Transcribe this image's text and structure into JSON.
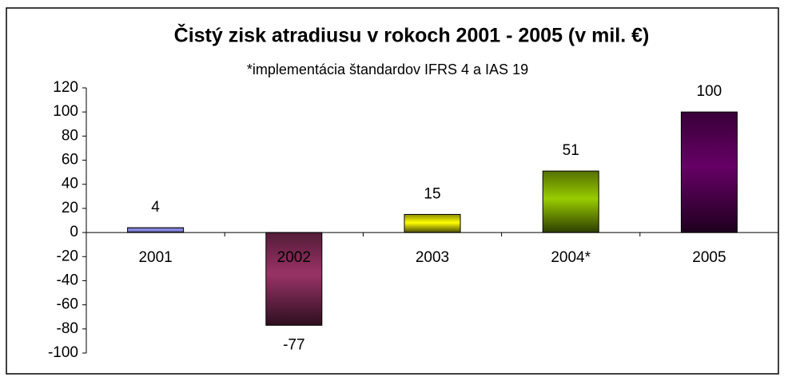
{
  "chart_data": {
    "type": "bar",
    "title": "Čistý zisk atradiusu v rokoch 2001 - 2005 (v mil. €)",
    "subtitle": "*implementácia štandardov IFRS 4 a IAS 19",
    "categories": [
      "2001",
      "2002",
      "2003",
      "2004*",
      "2005"
    ],
    "values": [
      4,
      -77,
      15,
      51,
      100
    ],
    "colors": [
      "#9999ff",
      "#993366",
      "#ffff00",
      "#99cc00",
      "#660066"
    ],
    "ylim": [
      -100,
      120
    ],
    "yticks": [
      -100,
      -80,
      -60,
      -40,
      -20,
      0,
      20,
      40,
      60,
      80,
      100,
      120
    ]
  }
}
